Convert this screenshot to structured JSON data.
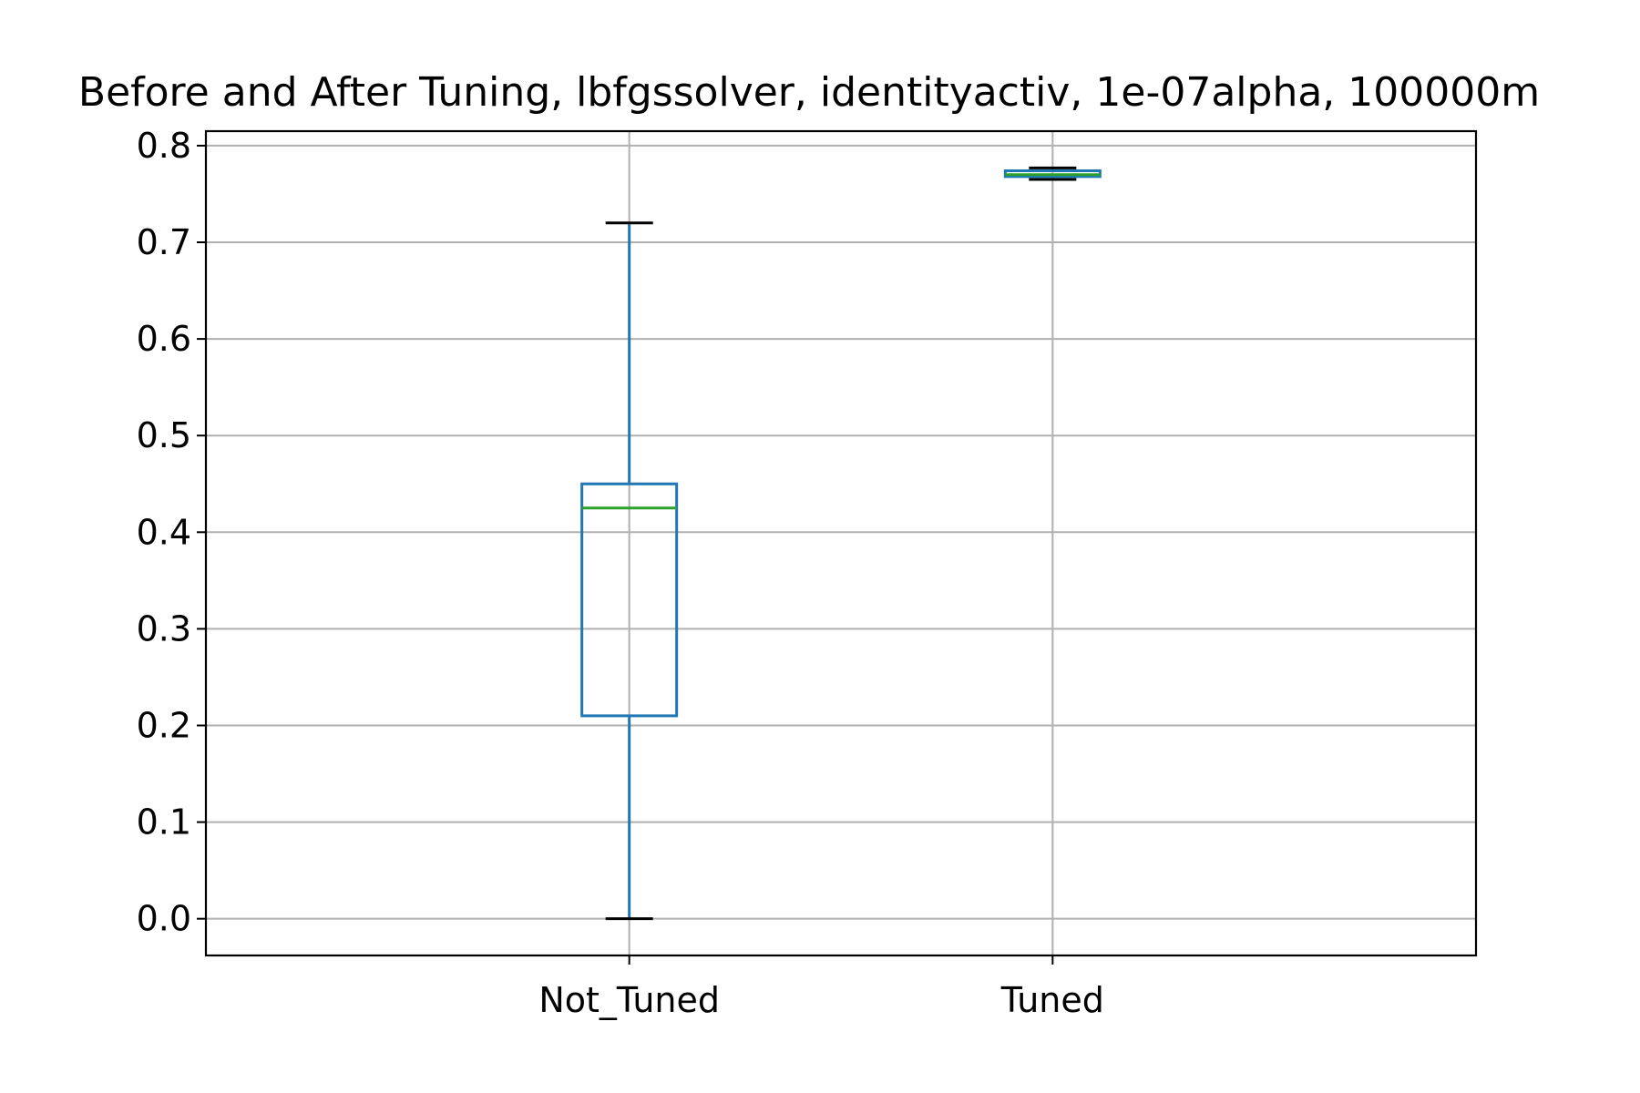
{
  "chart_data": {
    "type": "box",
    "title": "Before and After Tuning, lbfgssolver, identityactiv, 1e-07alpha, 100000m",
    "xlabel": "",
    "ylabel": "",
    "categories": [
      "Not_Tuned",
      "Tuned"
    ],
    "boxes": [
      {
        "category": "Not_Tuned",
        "whisker_low": 0.0,
        "q1": 0.21,
        "median": 0.425,
        "q3": 0.45,
        "whisker_high": 0.72
      },
      {
        "category": "Tuned",
        "whisker_low": 0.765,
        "q1": 0.768,
        "median": 0.77,
        "q3": 0.774,
        "whisker_high": 0.777
      }
    ],
    "yticks": [
      "0.0",
      "0.1",
      "0.2",
      "0.3",
      "0.4",
      "0.5",
      "0.6",
      "0.7",
      "0.8"
    ],
    "ylim": [
      -0.038,
      0.815
    ],
    "grid": true,
    "colors": {
      "box": "#1f77b4",
      "median": "#2ca02c",
      "cap": "#000000",
      "grid": "#b0b0b0",
      "axes": "#000000"
    }
  }
}
